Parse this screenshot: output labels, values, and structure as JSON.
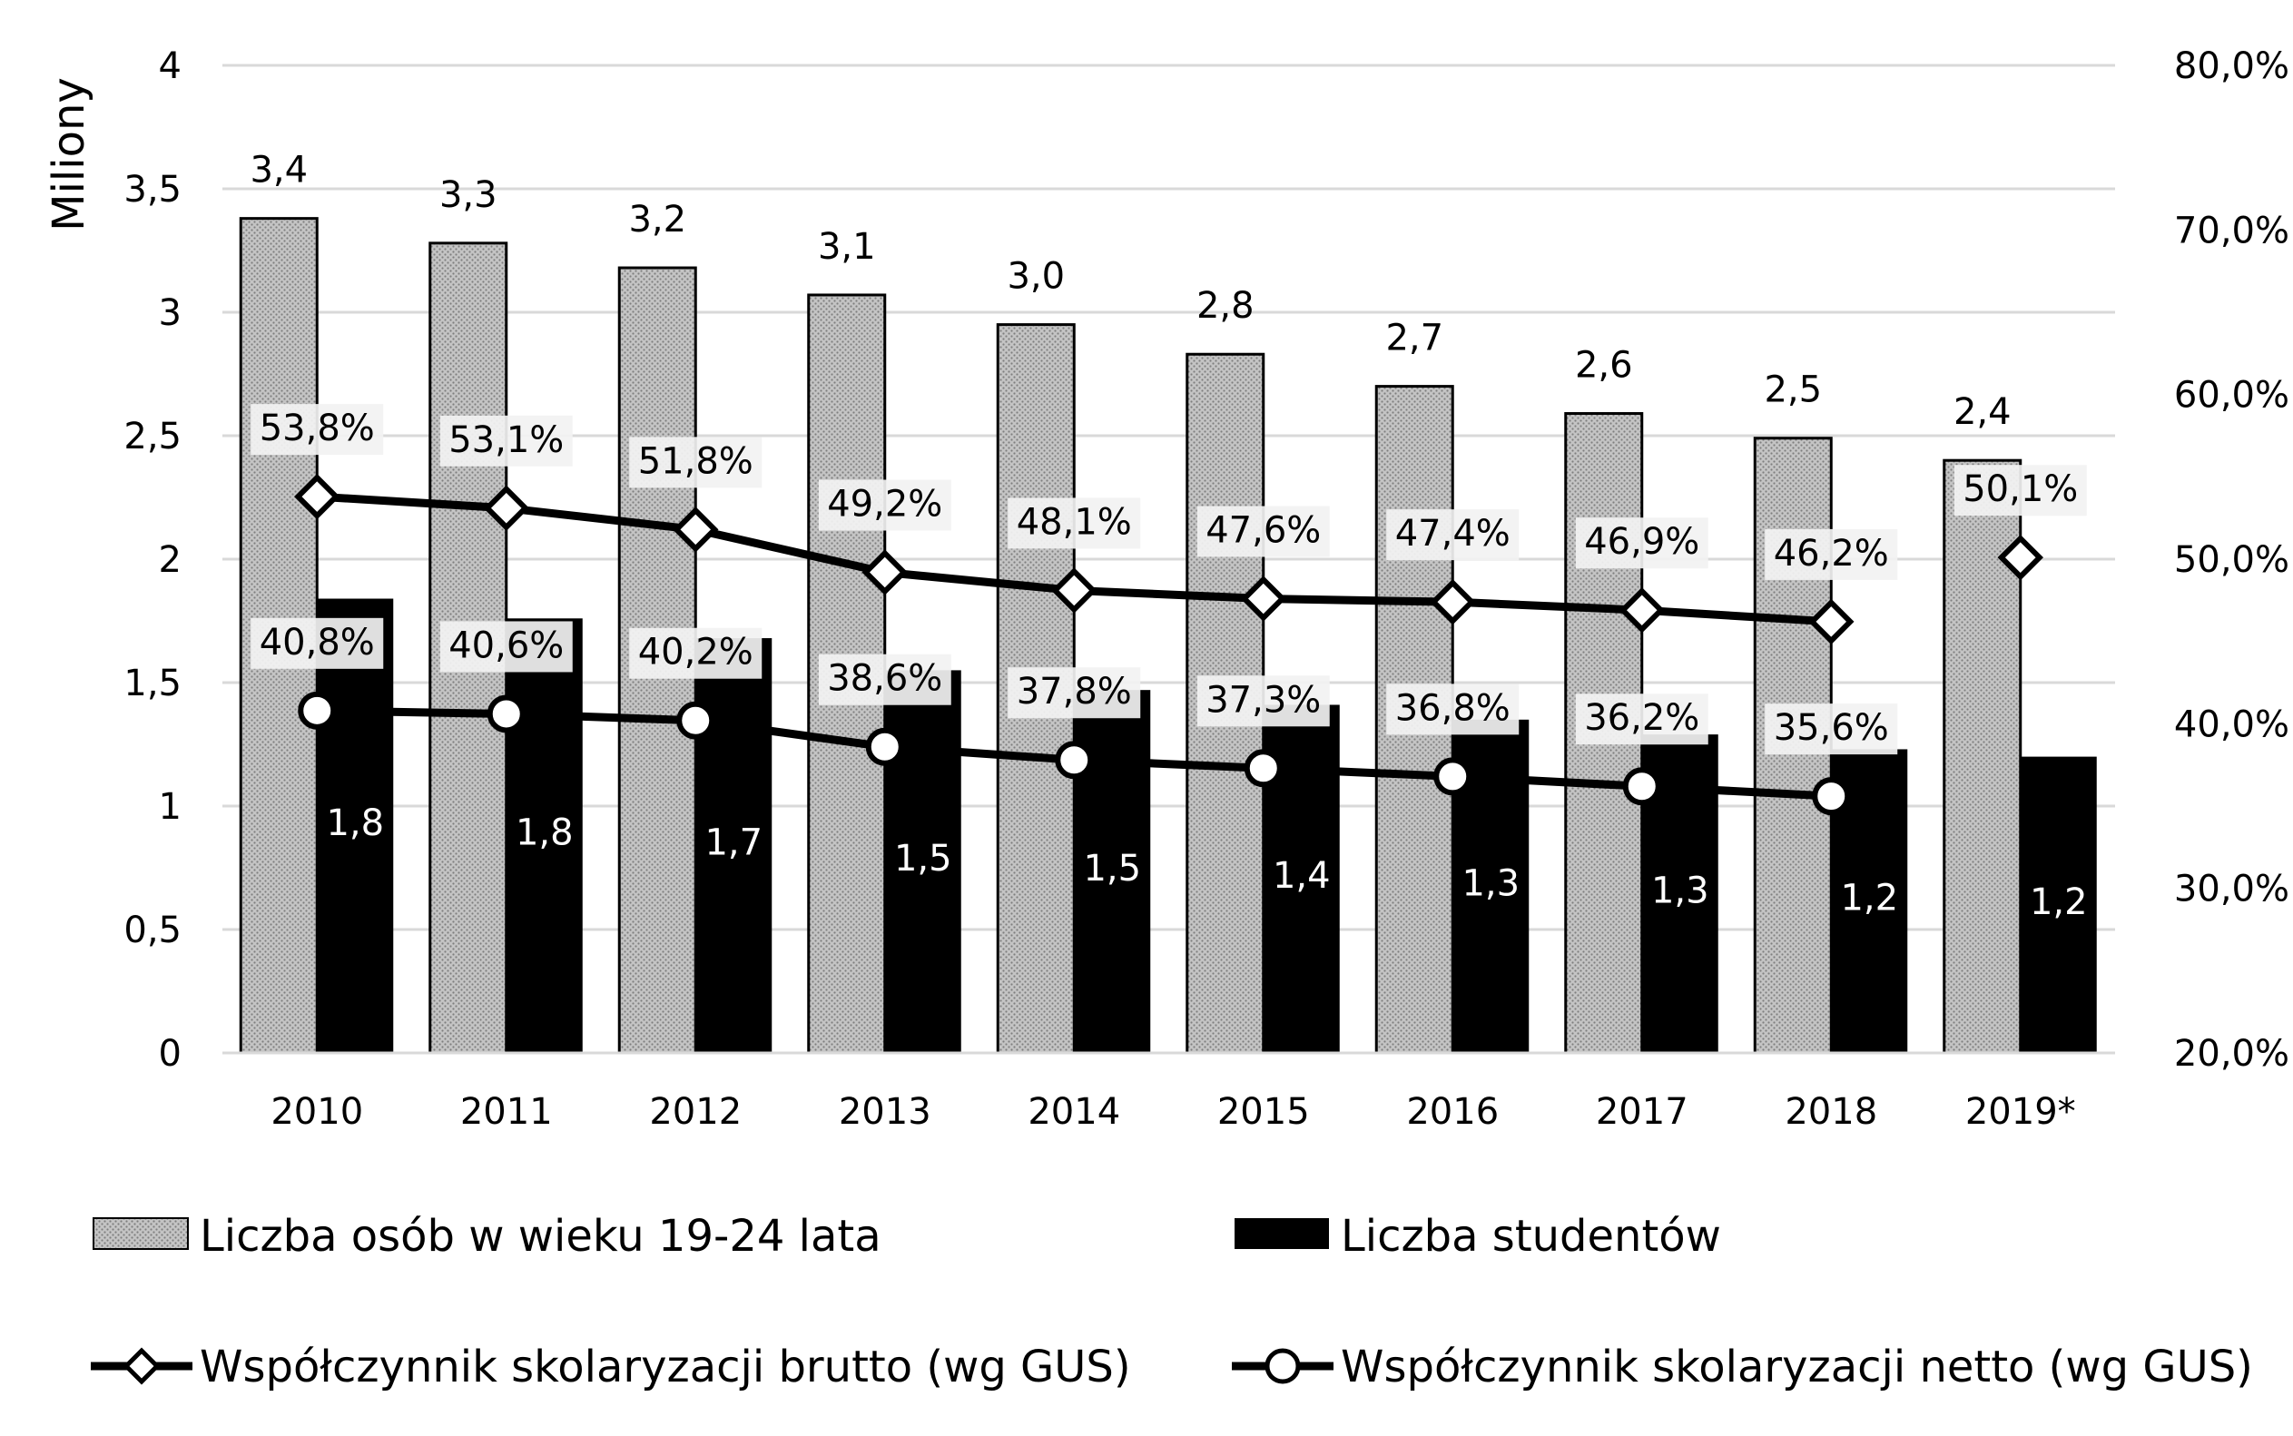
{
  "chart_data": {
    "type": "bar",
    "categories": [
      "2010",
      "2011",
      "2012",
      "2013",
      "2014",
      "2015",
      "2016",
      "2017",
      "2018",
      "2019*"
    ],
    "ylabel": "Miliony",
    "ylim": [
      0,
      4
    ],
    "y_ticks": [
      "0",
      "0,5",
      "1",
      "1,5",
      "2",
      "2,5",
      "3",
      "3,5",
      "4"
    ],
    "y2lim": [
      20,
      80
    ],
    "y2_ticks": [
      "20,0%",
      "30,0%",
      "40,0%",
      "50,0%",
      "60,0%",
      "70,0%",
      "80,0%"
    ],
    "grid": true,
    "legend_position": "bottom",
    "series": [
      {
        "name": "Liczba osób w wieku 19-24 lata",
        "kind": "bar",
        "axis": "left",
        "fill": "dotted-gray",
        "values": [
          3.38,
          3.28,
          3.18,
          3.07,
          2.95,
          2.83,
          2.7,
          2.59,
          2.49,
          2.4
        ],
        "labels": [
          "3,4",
          "3,3",
          "3,2",
          "3,1",
          "3,0",
          "2,8",
          "2,7",
          "2,6",
          "2,5",
          "2,4"
        ]
      },
      {
        "name": "Liczba studentów",
        "kind": "bar",
        "axis": "left",
        "fill": "#000000",
        "values": [
          1.84,
          1.76,
          1.68,
          1.55,
          1.47,
          1.41,
          1.35,
          1.29,
          1.23,
          1.2
        ],
        "labels": [
          "1,8",
          "1,8",
          "1,7",
          "1,5",
          "1,5",
          "1,4",
          "1,3",
          "1,3",
          "1,2",
          "1,2"
        ]
      },
      {
        "name": "Współczynnik skolaryzacji brutto (wg GUS)",
        "kind": "line",
        "axis": "right",
        "marker": "diamond",
        "values": [
          53.8,
          53.1,
          51.8,
          49.2,
          48.1,
          47.6,
          47.4,
          46.9,
          46.2,
          50.1
        ],
        "labels": [
          "53,8%",
          "53,1%",
          "51,8%",
          "49,2%",
          "48,1%",
          "47,6%",
          "47,4%",
          "46,9%",
          "46,2%",
          "50,1%"
        ],
        "line_ends_at_index": 8
      },
      {
        "name": "Współczynnik skolaryzacji netto (wg GUS)",
        "kind": "line",
        "axis": "right",
        "marker": "circle",
        "values": [
          40.8,
          40.6,
          40.2,
          38.6,
          37.8,
          37.3,
          36.8,
          36.2,
          35.6,
          null
        ],
        "labels": [
          "40,8%",
          "40,6%",
          "40,2%",
          "38,6%",
          "37,8%",
          "37,3%",
          "36,8%",
          "36,2%",
          "35,6%",
          ""
        ]
      }
    ]
  },
  "colors": {
    "grid": "#d9d9d9",
    "bar_gray_base": "#bfbfbf",
    "bar_gray_dot": "#8c8c8c",
    "students": "#000000",
    "line": "#000000",
    "marker_fill": "#ffffff",
    "label_box": "#f2f2f2"
  }
}
